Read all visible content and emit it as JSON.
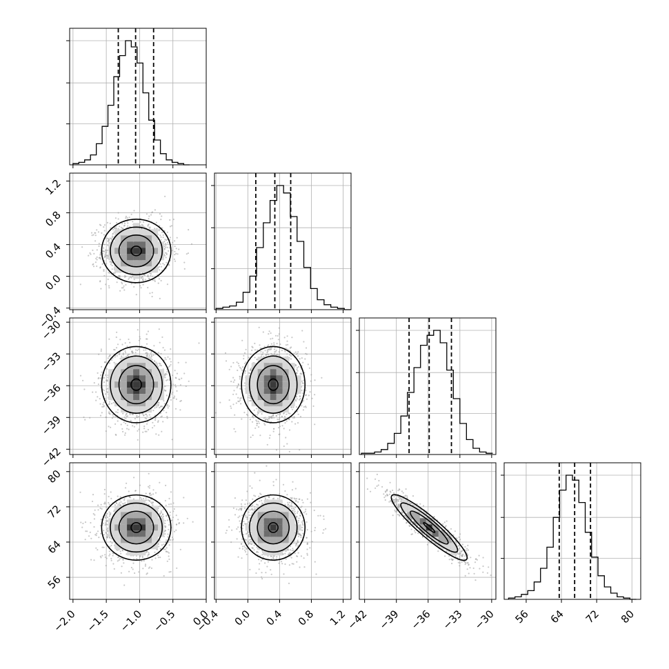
{
  "chart_data": {
    "type": "corner",
    "grid": true,
    "parameters": [
      {
        "range": [
          -2.05,
          0.0
        ],
        "ticks": [
          -2.0,
          -1.5,
          -1.0,
          -0.5,
          0.0
        ],
        "tick_labels": [
          "−2.0",
          "−1.5",
          "−1.0",
          "−0.5",
          "0.0"
        ],
        "mean": -1.05,
        "std": 0.26,
        "quantiles": [
          -1.32,
          -1.06,
          -0.79
        ],
        "histogram": {
          "edges_start": -2.0,
          "bin_width": 0.0875,
          "counts": [
            1,
            2,
            4,
            8,
            17,
            31,
            48,
            71,
            88,
            100,
            95,
            82,
            58,
            36,
            20,
            9,
            4,
            2,
            1,
            0
          ]
        }
      },
      {
        "range": [
          -0.42,
          1.3
        ],
        "ticks": [
          -0.4,
          0.0,
          0.4,
          0.8,
          1.2
        ],
        "tick_labels": [
          "−0.4",
          "0.0",
          "0.4",
          "0.8",
          "1.2"
        ],
        "mean": 0.32,
        "std": 0.2,
        "quantiles": [
          0.1,
          0.34,
          0.54
        ],
        "histogram": {
          "edges_start": -0.4,
          "bin_width": 0.085,
          "counts": [
            1,
            2,
            3,
            6,
            14,
            27,
            50,
            70,
            88,
            100,
            94,
            75,
            55,
            34,
            17,
            8,
            4,
            2,
            1,
            0
          ]
        }
      },
      {
        "range": [
          -42.5,
          -29.6
        ],
        "ticks": [
          -42,
          -39,
          -36,
          -33,
          -30
        ],
        "tick_labels": [
          "−42",
          "−39",
          "−36",
          "−33",
          "−30"
        ],
        "mean": -35.9,
        "std": 1.8,
        "quantiles": [
          -37.8,
          -35.9,
          -33.8
        ],
        "histogram": {
          "edges_start": -42.3,
          "bin_width": 0.62,
          "counts": [
            1,
            1,
            2,
            4,
            9,
            17,
            31,
            50,
            70,
            88,
            96,
            100,
            90,
            68,
            45,
            25,
            12,
            5,
            2,
            1
          ]
        }
      },
      {
        "range": [
          51.0,
          82.0
        ],
        "ticks": [
          56,
          64,
          72,
          80
        ],
        "tick_labels": [
          "56",
          "64",
          "72",
          "80"
        ],
        "mean": 67.3,
        "std": 3.7,
        "quantiles": [
          63.5,
          67.0,
          70.6
        ],
        "histogram": {
          "edges_start": 52.0,
          "bin_width": 1.45,
          "counts": [
            1,
            2,
            4,
            7,
            14,
            25,
            42,
            66,
            88,
            100,
            96,
            78,
            54,
            34,
            19,
            10,
            5,
            2,
            1,
            0
          ]
        }
      }
    ],
    "correlations": [
      [
        1,
        0,
        0,
        0
      ],
      [
        0,
        1,
        0,
        0
      ],
      [
        0,
        0,
        1,
        -0.92
      ],
      [
        0,
        0,
        -0.92,
        1
      ]
    ],
    "colors": {
      "line": "#000000",
      "scatter": "#9a9a9a",
      "grid": "#b0b0b0"
    }
  }
}
